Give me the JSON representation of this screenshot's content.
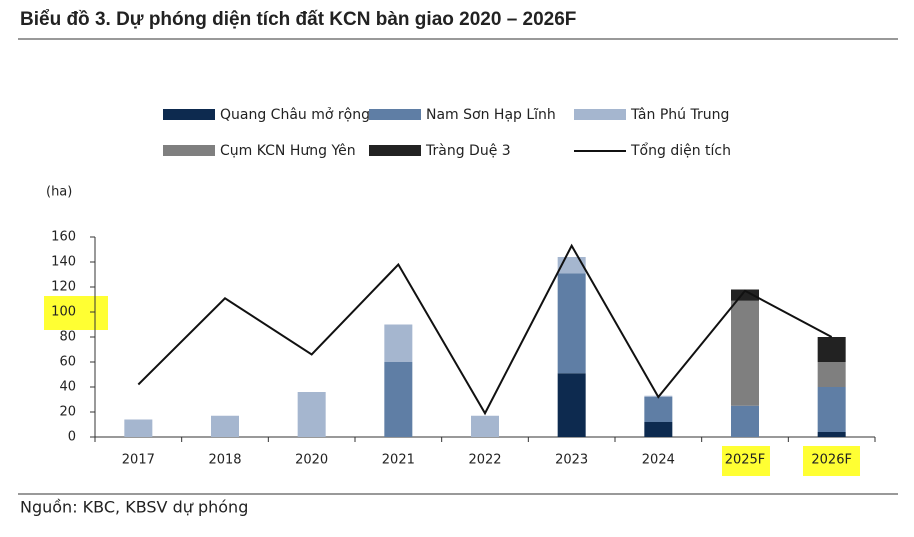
{
  "chart_data": {
    "type": "bar",
    "title": "Biểu đồ 3. Dự phóng diện tích đất KCN bàn giao 2020 – 2026F",
    "y_label": "(ha)",
    "source": "Nguồn: KBC, KBSV dự phóng",
    "categories": [
      "2017",
      "2018",
      "2020",
      "2021",
      "2022",
      "2023",
      "2024",
      "2025F",
      "2026F"
    ],
    "series": [
      {
        "name": "Quang Châu mở rộng",
        "color": "#0d2a4f",
        "values": [
          null,
          null,
          null,
          null,
          null,
          51,
          12,
          null,
          4
        ]
      },
      {
        "name": "Nam Sơn Hạp Lĩnh",
        "color": "#5f7ea5",
        "values": [
          null,
          null,
          null,
          60,
          null,
          80,
          20,
          25,
          36
        ]
      },
      {
        "name": "Tân Phú Trung",
        "color": "#a5b6cf",
        "values": [
          14,
          17,
          36,
          30,
          17,
          13,
          1,
          null,
          null
        ]
      },
      {
        "name": "Cụm KCN Hưng Yên",
        "color": "#7f7f7f",
        "values": [
          null,
          null,
          null,
          null,
          null,
          null,
          null,
          84,
          20
        ]
      },
      {
        "name": "Tràng Duệ 3",
        "color": "#222222",
        "values": [
          null,
          null,
          null,
          null,
          null,
          null,
          null,
          9,
          20
        ]
      },
      {
        "name": "Tổng diện tích",
        "color": "#111111",
        "type": "line",
        "values": [
          42,
          111,
          66,
          138,
          19,
          153,
          32,
          117,
          80
        ]
      }
    ],
    "ylim": [
      0,
      160
    ],
    "yticks": [
      0,
      20,
      40,
      60,
      80,
      100,
      120,
      140,
      160
    ]
  }
}
